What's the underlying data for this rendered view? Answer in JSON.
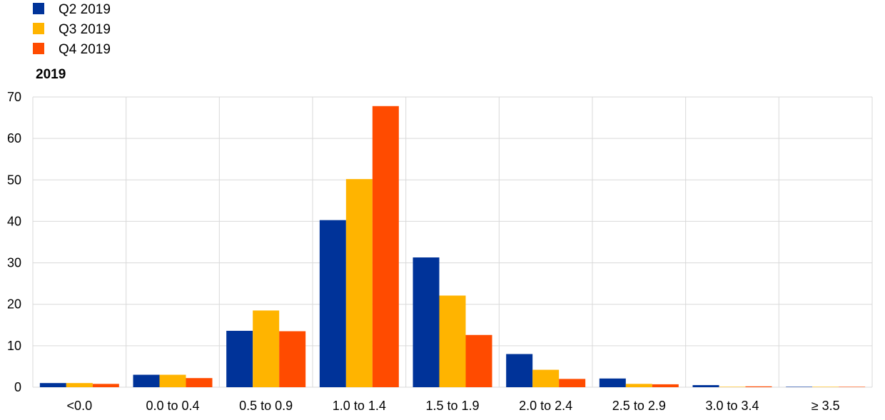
{
  "chart_data": {
    "type": "bar",
    "title": "2019",
    "xlabel": "",
    "ylabel": "",
    "ylim": [
      0,
      70
    ],
    "yticks": [
      0,
      10,
      20,
      30,
      40,
      50,
      60,
      70
    ],
    "grid": true,
    "legend_position": "top-left",
    "categories": [
      "<0.0",
      "0.0 to 0.4",
      "0.5 to 0.9",
      "1.0 to 1.4",
      "1.5 to 1.9",
      "2.0 to 2.4",
      "2.5 to 2.9",
      "3.0 to 3.4",
      "≥ 3.5"
    ],
    "series": [
      {
        "name": "Q2 2019",
        "color": "#003399",
        "values": [
          1.0,
          3.0,
          13.6,
          40.3,
          31.3,
          8.0,
          2.1,
          0.5,
          0.1
        ]
      },
      {
        "name": "Q3 2019",
        "color": "#ffb400",
        "values": [
          1.0,
          3.0,
          18.5,
          50.2,
          22.1,
          4.2,
          0.8,
          0.1,
          0.1
        ]
      },
      {
        "name": "Q4 2019",
        "color": "#ff4b00",
        "values": [
          0.8,
          2.2,
          13.5,
          67.8,
          12.6,
          2.0,
          0.7,
          0.2,
          0.1
        ]
      }
    ]
  }
}
